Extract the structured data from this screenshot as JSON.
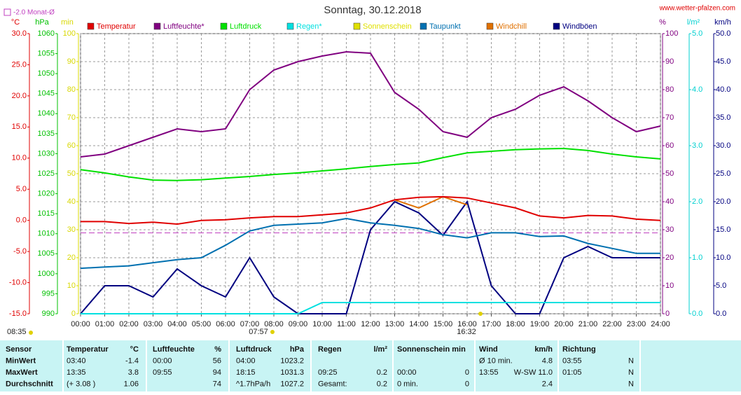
{
  "chart_data": {
    "type": "line",
    "title": "Sonntag, 30.12.2018",
    "source": "www.wetter-pfalzen.com",
    "monthly_avg": {
      "label": "-2.0 Monat-Ø",
      "value": -2.0,
      "color": "#c040c0"
    },
    "current_time": "08:35",
    "sunrise": "07:57",
    "sunset": "16:32",
    "grid": true,
    "xlim": [
      0,
      24
    ],
    "xticks": [
      {
        "value": 0,
        "label": "00:00"
      },
      {
        "value": 1,
        "label": "01:00"
      },
      {
        "value": 2,
        "label": "02:00"
      },
      {
        "value": 3,
        "label": "03:00"
      },
      {
        "value": 4,
        "label": "04:00"
      },
      {
        "value": 5,
        "label": "05:00"
      },
      {
        "value": 6,
        "label": "06:00"
      },
      {
        "value": 7,
        "label": "07:00"
      },
      {
        "value": 8,
        "label": "08:00"
      },
      {
        "value": 9,
        "label": "09:00"
      },
      {
        "value": 10,
        "label": "10:00"
      },
      {
        "value": 11,
        "label": "11:00"
      },
      {
        "value": 12,
        "label": "12:00"
      },
      {
        "value": 13,
        "label": "13:00"
      },
      {
        "value": 14,
        "label": "14:00"
      },
      {
        "value": 15,
        "label": "15:00"
      },
      {
        "value": 16,
        "label": "16:00"
      },
      {
        "value": 17,
        "label": "17:00"
      },
      {
        "value": 18,
        "label": "18:00"
      },
      {
        "value": 19,
        "label": "19:00"
      },
      {
        "value": 20,
        "label": "20:00"
      },
      {
        "value": 21,
        "label": "21:00"
      },
      {
        "value": 22,
        "label": "22:00"
      },
      {
        "value": 23,
        "label": "23:00"
      },
      {
        "value": 24,
        "label": "24:00"
      }
    ],
    "axes": {
      "temp": {
        "label": "°C",
        "color": "#e00000",
        "lim": [
          -15,
          30
        ],
        "ticks": [
          {
            "value": -15,
            "label": "-15.0"
          },
          {
            "value": -10,
            "label": "-10.0"
          },
          {
            "value": -5,
            "label": "-5.0"
          },
          {
            "value": 0,
            "label": "0.0"
          },
          {
            "value": 5,
            "label": "5.0"
          },
          {
            "value": 10,
            "label": "10.0"
          },
          {
            "value": 15,
            "label": "15.0"
          },
          {
            "value": 20,
            "label": "20.0"
          },
          {
            "value": 25,
            "label": "25.0"
          },
          {
            "value": 30,
            "label": "30.0"
          }
        ]
      },
      "hpa": {
        "label": "hPa",
        "color": "#00c000",
        "lim": [
          990,
          1060
        ],
        "ticks": [
          990,
          995,
          1000,
          1005,
          1010,
          1015,
          1020,
          1025,
          1030,
          1035,
          1040,
          1045,
          1050,
          1055,
          1060
        ]
      },
      "min": {
        "label": "min",
        "color": "#d8d800",
        "lim": [
          0,
          100
        ],
        "ticks": [
          0,
          10,
          20,
          30,
          40,
          50,
          60,
          70,
          80,
          90,
          100
        ]
      },
      "pct": {
        "label": "%",
        "color": "#800080",
        "lim": [
          0,
          100
        ],
        "ticks": [
          0,
          10,
          20,
          30,
          40,
          50,
          60,
          70,
          80,
          90,
          100
        ]
      },
      "rain": {
        "label": "l/m²",
        "color": "#00d0d0",
        "lim": [
          0,
          5
        ],
        "ticks": [
          {
            "value": 0,
            "label": "0.0"
          },
          {
            "value": 1,
            "label": "1.0"
          },
          {
            "value": 2,
            "label": "2.0"
          },
          {
            "value": 3,
            "label": "3.0"
          },
          {
            "value": 4,
            "label": "4.0"
          },
          {
            "value": 5,
            "label": "5.0"
          }
        ]
      },
      "wind": {
        "label": "km/h",
        "color": "#000080",
        "lim": [
          0,
          50
        ],
        "ticks": [
          {
            "value": 0,
            "label": "0.0"
          },
          {
            "value": 5,
            "label": "5.0"
          },
          {
            "value": 10,
            "label": "10.0"
          },
          {
            "value": 15,
            "label": "15.0"
          },
          {
            "value": 20,
            "label": "20.0"
          },
          {
            "value": 25,
            "label": "25.0"
          },
          {
            "value": 30,
            "label": "30.0"
          },
          {
            "value": 35,
            "label": "35.0"
          },
          {
            "value": 40,
            "label": "40.0"
          },
          {
            "value": 45,
            "label": "45.0"
          },
          {
            "value": 50,
            "label": "50.0"
          }
        ]
      }
    },
    "x": [
      0,
      1,
      2,
      3,
      4,
      5,
      6,
      7,
      8,
      9,
      10,
      11,
      12,
      13,
      14,
      15,
      16,
      17,
      18,
      19,
      20,
      21,
      22,
      23,
      24
    ],
    "series": [
      {
        "name": "Temperatur",
        "color": "#e00000",
        "axis": "temp",
        "values": [
          -0.2,
          -0.2,
          -0.5,
          -0.3,
          -0.6,
          0.0,
          0.1,
          0.4,
          0.6,
          0.6,
          0.9,
          1.2,
          2.0,
          3.3,
          3.7,
          3.8,
          3.6,
          2.8,
          2.0,
          0.7,
          0.4,
          0.8,
          0.7,
          0.2,
          0.0
        ]
      },
      {
        "name": "Luftfeuchte*",
        "color": "#800080",
        "axis": "pct",
        "values": [
          56,
          57,
          60,
          63,
          66,
          65,
          66,
          80,
          87,
          90,
          92,
          93.5,
          93,
          79,
          73,
          65,
          63,
          70,
          73,
          78,
          81,
          76,
          70,
          65,
          67
        ]
      },
      {
        "name": "Luftdruck",
        "color": "#00e000",
        "axis": "hpa",
        "values": [
          1026.0,
          1025.2,
          1024.2,
          1023.4,
          1023.3,
          1023.5,
          1023.9,
          1024.3,
          1024.8,
          1025.2,
          1025.7,
          1026.2,
          1026.8,
          1027.3,
          1027.7,
          1029.0,
          1030.2,
          1030.6,
          1031.0,
          1031.2,
          1031.3,
          1030.8,
          1029.9,
          1029.2,
          1028.7
        ]
      },
      {
        "name": "Regen*",
        "color": "#00e0e0",
        "axis": "rain",
        "values": [
          0,
          0,
          0,
          0,
          0,
          0,
          0,
          0,
          0,
          0,
          0.2,
          0.2,
          0.2,
          0.2,
          0.2,
          0.2,
          0.2,
          0.2,
          0.2,
          0.2,
          0.2,
          0.2,
          0.2,
          0.2,
          0.2
        ]
      },
      {
        "name": "Sonnenschein",
        "color": "#e0e000",
        "axis": "min",
        "values": [
          null,
          null,
          null,
          null,
          null,
          null,
          null,
          null,
          null,
          null,
          null,
          null,
          null,
          null,
          null,
          null,
          null,
          null,
          null,
          null,
          null,
          null,
          null,
          null,
          null
        ]
      },
      {
        "name": "Taupunkt",
        "color": "#0070b0",
        "axis": "temp",
        "values": [
          -7.7,
          -7.5,
          -7.3,
          -6.8,
          -6.3,
          -6.0,
          -4.0,
          -1.7,
          -0.8,
          -0.6,
          -0.4,
          0.3,
          -0.4,
          -0.8,
          -1.3,
          -2.3,
          -2.8,
          -2.0,
          -2.0,
          -2.6,
          -2.5,
          -3.7,
          -4.5,
          -5.3,
          -5.3
        ]
      },
      {
        "name": "Windchill",
        "color": "#e07000",
        "axis": "temp",
        "values": [
          null,
          null,
          null,
          null,
          null,
          null,
          null,
          null,
          null,
          null,
          null,
          null,
          null,
          3.3,
          2.0,
          3.8,
          2.5,
          null,
          null,
          null,
          null,
          null,
          null,
          null,
          null
        ]
      },
      {
        "name": "Windböen",
        "color": "#000080",
        "axis": "wind",
        "values": [
          0,
          5,
          5,
          3,
          8,
          5,
          3,
          10,
          3,
          0,
          0,
          0,
          15,
          20,
          18,
          14,
          20,
          5,
          0,
          0,
          10,
          12,
          10,
          10,
          10
        ]
      }
    ]
  },
  "table": {
    "rows": [
      [
        "Sensor",
        "Temperatur",
        "°C",
        "Luftfeuchte",
        "%",
        "Luftdruck",
        "hPa",
        "Regen",
        "l/m²",
        "Sonnenschein min",
        null,
        "Wind",
        "km/h",
        "Richtung",
        null
      ],
      [
        "MinWert",
        "03:40",
        "-1.4",
        "00:00",
        "56",
        "04:00",
        "1023.2",
        null,
        null,
        null,
        null,
        "Ø 10 min.",
        "4.8",
        "03:55",
        "N"
      ],
      [
        "MaxWert",
        "13:35",
        "3.8",
        "09:55",
        "94",
        "18:15",
        "1031.3",
        "09:25",
        "0.2",
        "00:00",
        "0",
        "13:55",
        "W-SW 11.0",
        "01:05",
        "N"
      ],
      [
        "Durchschnitt",
        "(+ 3.08 )",
        "1.06",
        null,
        "74",
        "^1.7hPa/h",
        "1027.2",
        "Gesamt:",
        "0.2",
        "0 min.",
        "0",
        null,
        "2.4",
        null,
        "N"
      ]
    ]
  }
}
